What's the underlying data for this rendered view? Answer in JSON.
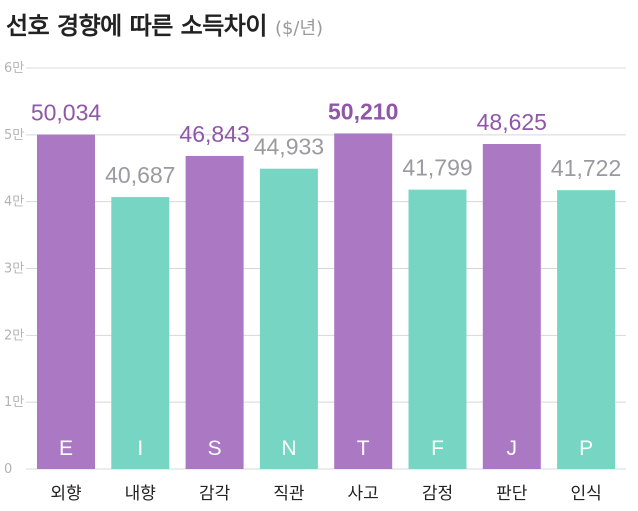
{
  "title": "선호 경향에 따른 소득차이",
  "unit": "($/년)",
  "colors": {
    "purple": "#ab78c3",
    "teal": "#76d6c3",
    "purple_text": "#8f57a8",
    "gray_text": "#9a9aa0",
    "grid": "#d8d8d8"
  },
  "chart_data": {
    "type": "bar",
    "title": "선호 경향에 따른 소득차이",
    "ylabel": "($/년)",
    "categories": [
      "외향",
      "내향",
      "감각",
      "직관",
      "사고",
      "감정",
      "판단",
      "인식"
    ],
    "letters": [
      "E",
      "I",
      "S",
      "N",
      "T",
      "F",
      "J",
      "P"
    ],
    "values": [
      50034,
      40687,
      46843,
      44933,
      50210,
      41799,
      48625,
      41722
    ],
    "value_labels": [
      "50,034",
      "40,687",
      "46,843",
      "44,933",
      "50,210",
      "41,799",
      "48,625",
      "41,722"
    ],
    "bar_colors": [
      "purple",
      "teal",
      "purple",
      "teal",
      "purple",
      "teal",
      "purple",
      "teal"
    ],
    "highlight_index": 4,
    "y_ticks": [
      0,
      10000,
      20000,
      30000,
      40000,
      50000,
      60000
    ],
    "y_tick_labels": [
      "0",
      "1만",
      "2만",
      "3만",
      "4만",
      "5만",
      "6만"
    ],
    "ylim": [
      0,
      60000
    ],
    "grid": true
  }
}
